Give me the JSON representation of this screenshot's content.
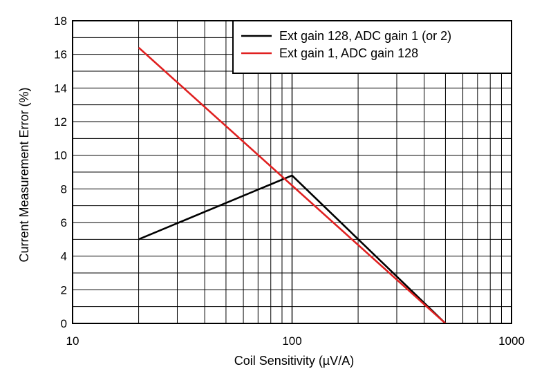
{
  "chart_data": {
    "type": "line",
    "xlabel": "Coil Sensitivity (µV/A)",
    "ylabel": "Current Measurement Error (%)",
    "xscale": "log",
    "xlim": [
      10,
      1000
    ],
    "ylim": [
      0,
      18
    ],
    "x_ticks": [
      "10",
      "100",
      "1000"
    ],
    "y_ticks": [
      "0",
      "2",
      "4",
      "6",
      "8",
      "10",
      "12",
      "14",
      "16",
      "18"
    ],
    "grid": true,
    "legend_position": "top-right",
    "series": [
      {
        "name": "Ext gain 128, ADC gain 1 (or 2)",
        "color": "#000000",
        "points": [
          [
            20,
            5.0
          ],
          [
            100,
            8.8
          ],
          [
            500,
            0.0
          ]
        ]
      },
      {
        "name": "Ext gain 1, ADC gain 128",
        "color": "#e02020",
        "points": [
          [
            20,
            16.4
          ],
          [
            500,
            0.0
          ]
        ]
      }
    ]
  }
}
